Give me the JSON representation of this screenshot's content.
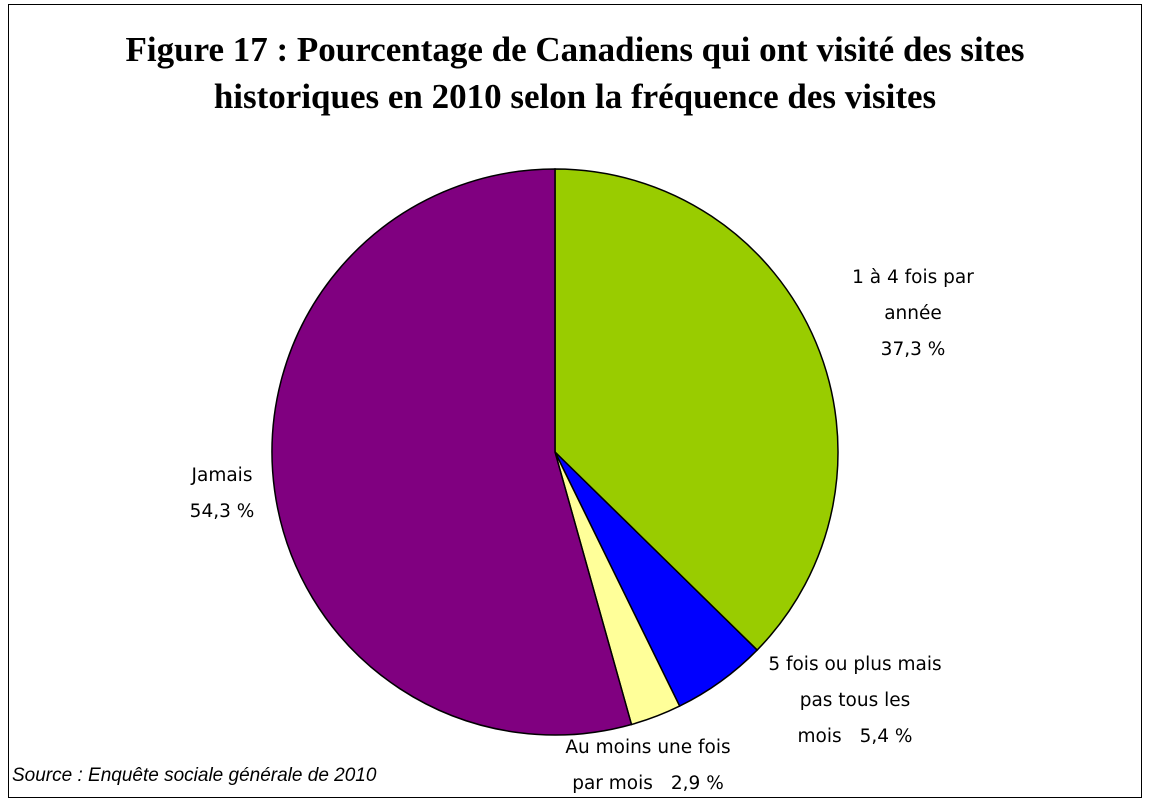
{
  "chart_data": {
    "type": "pie",
    "title": "Figure 17 : Pourcentage de Canadiens qui ont visité des sites historiques en 2010 selon la fréquence des visites",
    "categories": [
      "1 à 4 fois par année",
      "5 fois ou plus mais pas tous les mois",
      "Au moins une fois par mois",
      "Jamais"
    ],
    "values": [
      37.3,
      5.4,
      2.9,
      54.3
    ],
    "value_labels": [
      "37,3 %",
      "5,4 %",
      "2,9 %",
      "54,3 %"
    ],
    "colors": [
      "#99cc00",
      "#0000ff",
      "#ffff99",
      "#800080"
    ],
    "source": "Source : Enquête sociale générale de 2010"
  }
}
